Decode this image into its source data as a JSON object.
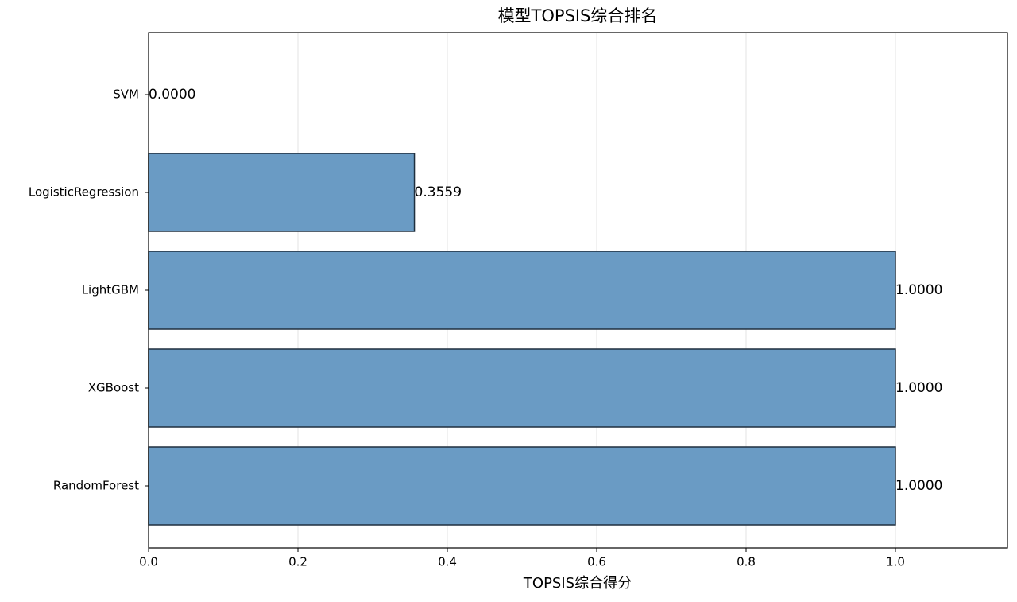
{
  "chart_data": {
    "type": "barh",
    "title": "模型TOPSIS综合排名",
    "x_label": "TOPSIS综合得分",
    "categories": [
      "SVM",
      "LogisticRegression",
      "LightGBM",
      "XGBoost",
      "RandomForest"
    ],
    "values": [
      0,
      0.3559,
      1,
      1,
      1
    ],
    "value_labels": [
      "0.0000",
      "0.3559",
      "1.0000",
      "1.0000",
      "1.0000"
    ],
    "color": "#6a9bc4",
    "edge_color": "#1f2f3f",
    "xlim": [
      0,
      1.15
    ],
    "xticks": [
      {
        "value": 0,
        "label": "0.0"
      },
      0.2,
      0.4,
      0.6,
      0.8,
      {
        "value": 1,
        "label": "1.0"
      }
    ],
    "grid": true
  }
}
